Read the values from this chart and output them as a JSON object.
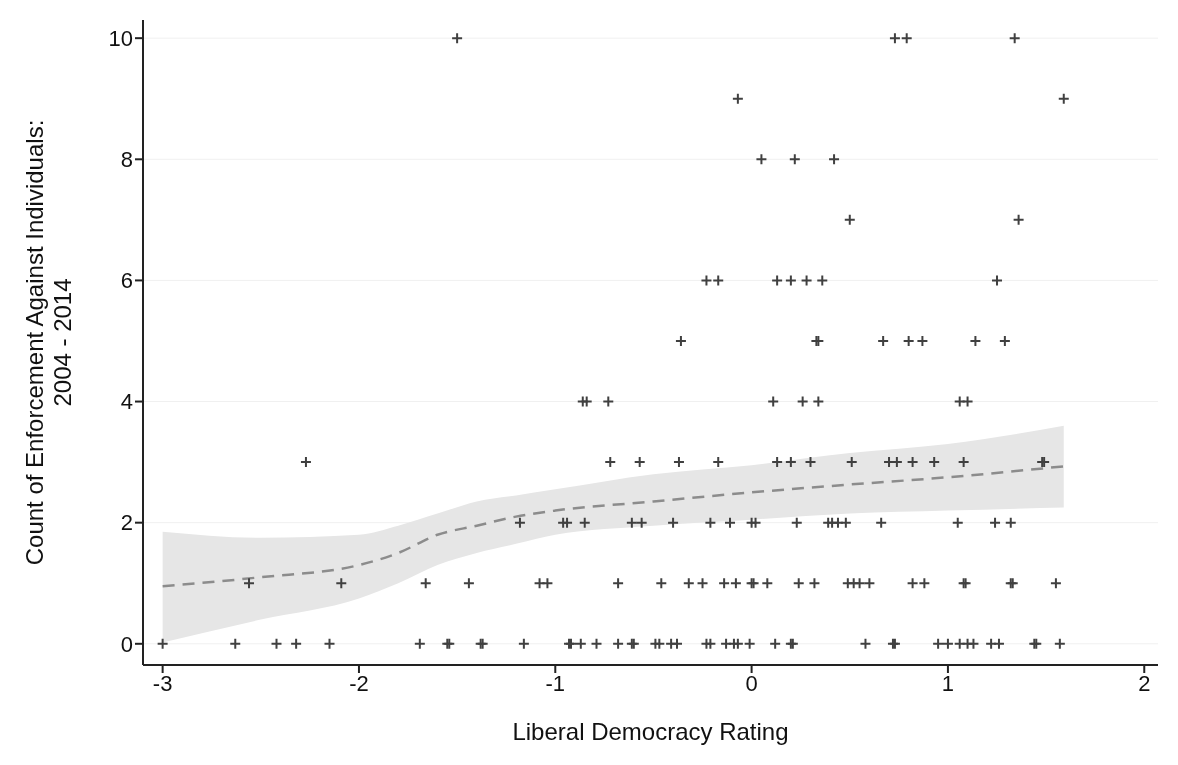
{
  "chart_data": {
    "type": "scatter",
    "xlabel": "Liberal Democracy Rating",
    "ylabel": "Count of Enforcement Against Individuals:\n2004 - 2014",
    "xlim": [
      -3.1,
      2.07
    ],
    "xticks": [
      -3,
      -2,
      -1,
      0,
      1,
      2
    ],
    "ylim": [
      -0.35,
      10.3
    ],
    "yticks": [
      0,
      2,
      4,
      6,
      8,
      10
    ],
    "grid": "y",
    "series": [
      {
        "marker": "cross",
        "color": "#404040",
        "x": [
          -1.5,
          0.73,
          0.79,
          1.34,
          -0.07,
          1.59,
          0.05,
          0.22,
          0.42,
          0.5,
          1.36,
          -0.23,
          -0.17,
          0.13,
          0.2,
          0.28,
          0.36,
          1.25,
          -0.36,
          0.33,
          0.34,
          0.67,
          0.8,
          0.87,
          1.14,
          1.29,
          -0.86,
          -0.84,
          -0.73,
          0.11,
          0.26,
          0.34,
          1.06,
          1.1,
          -2.27,
          -0.72,
          -0.57,
          -0.37,
          -0.17,
          0.13,
          0.2,
          0.3,
          0.51,
          0.7,
          0.74,
          0.82,
          0.93,
          1.08,
          1.48,
          1.49,
          -1.18,
          -0.96,
          -0.94,
          -0.85,
          -0.61,
          -0.56,
          -0.4,
          -0.21,
          -0.11,
          0.0,
          0.02,
          0.23,
          0.39,
          0.41,
          0.44,
          0.48,
          0.66,
          1.05,
          1.24,
          1.32,
          -2.56,
          -2.09,
          -1.66,
          -1.44,
          -1.08,
          -1.04,
          -0.68,
          -0.46,
          -0.32,
          -0.25,
          -0.14,
          -0.08,
          0.0,
          0.01,
          0.08,
          0.24,
          0.32,
          0.49,
          0.52,
          0.55,
          0.6,
          0.82,
          0.88,
          1.08,
          1.09,
          1.32,
          1.33,
          1.55,
          -3.0,
          -2.63,
          -2.42,
          -2.32,
          -2.15,
          -1.69,
          -1.55,
          -1.54,
          -1.38,
          -1.37,
          -1.16,
          -0.93,
          -0.92,
          -0.87,
          -0.79,
          -0.68,
          -0.61,
          -0.6,
          -0.49,
          -0.47,
          -0.41,
          -0.38,
          -0.23,
          -0.21,
          -0.13,
          -0.09,
          -0.07,
          -0.01,
          0.12,
          0.2,
          0.21,
          0.58,
          0.72,
          0.73,
          0.95,
          1.0,
          1.06,
          1.1,
          1.13,
          1.22,
          1.26,
          1.44,
          1.45,
          1.57
        ],
        "values": [
          10,
          10,
          10,
          10,
          9,
          9,
          8,
          8,
          8,
          7,
          7,
          6,
          6,
          6,
          6,
          6,
          6,
          6,
          5,
          5,
          5,
          5,
          5,
          5,
          5,
          5,
          4,
          4,
          4,
          4,
          4,
          4,
          4,
          4,
          3,
          3,
          3,
          3,
          3,
          3,
          3,
          3,
          3,
          3,
          3,
          3,
          3,
          3,
          3,
          3,
          2,
          2,
          2,
          2,
          2,
          2,
          2,
          2,
          2,
          2,
          2,
          2,
          2,
          2,
          2,
          2,
          2,
          2,
          2,
          2,
          1,
          1,
          1,
          1,
          1,
          1,
          1,
          1,
          1,
          1,
          1,
          1,
          1,
          1,
          1,
          1,
          1,
          1,
          1,
          1,
          1,
          1,
          1,
          1,
          1,
          1,
          1,
          1,
          0,
          0,
          0,
          0,
          0,
          0,
          0,
          0,
          0,
          0,
          0,
          0,
          0,
          0,
          0,
          0,
          0,
          0,
          0,
          0,
          0,
          0,
          0,
          0,
          0,
          0,
          0,
          0,
          0,
          0,
          0,
          0,
          0,
          0,
          0,
          0,
          0,
          0,
          0,
          0,
          0,
          0,
          0,
          0
        ]
      },
      {
        "type": "line",
        "color": "#8c8c8c",
        "line_style": "dashed",
        "x": [
          -3,
          -2.5,
          -2,
          -1.8,
          -1.6,
          -1.4,
          -1.2,
          -1,
          -0.5,
          0,
          0.5,
          1,
          1.59
        ],
        "values": [
          0.95,
          1.1,
          1.3,
          1.5,
          1.8,
          1.95,
          2.1,
          2.2,
          2.35,
          2.5,
          2.63,
          2.75,
          2.93
        ],
        "lower": [
          0.02,
          0.4,
          0.75,
          1.0,
          1.3,
          1.5,
          1.65,
          1.8,
          1.95,
          2.05,
          2.15,
          2.2,
          2.25
        ],
        "upper": [
          1.85,
          1.75,
          1.8,
          1.95,
          2.15,
          2.35,
          2.45,
          2.55,
          2.8,
          2.95,
          3.15,
          3.3,
          3.6
        ]
      }
    ]
  }
}
